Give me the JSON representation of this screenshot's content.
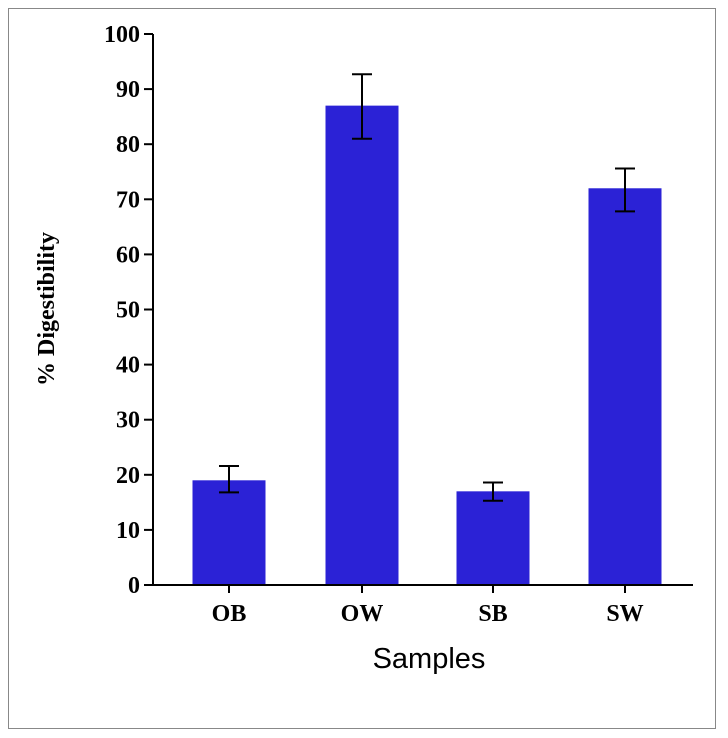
{
  "chart_data": {
    "type": "bar",
    "title": "",
    "xlabel": "Samples",
    "ylabel": "% Digestibility",
    "categories": [
      "OB",
      "OW",
      "SB",
      "SW"
    ],
    "values": [
      19,
      87,
      17,
      72
    ],
    "error_low": [
      16.8,
      81,
      15.3,
      67.8
    ],
    "error_high": [
      21.6,
      92.7,
      18.6,
      75.6
    ],
    "ylim": [
      0,
      100
    ],
    "yticks": [
      0,
      10,
      20,
      30,
      40,
      50,
      60,
      70,
      80,
      90,
      100
    ],
    "grid": false,
    "colors": {
      "bar": "#2b22d6",
      "axis": "#000000",
      "error": "#000000"
    }
  }
}
